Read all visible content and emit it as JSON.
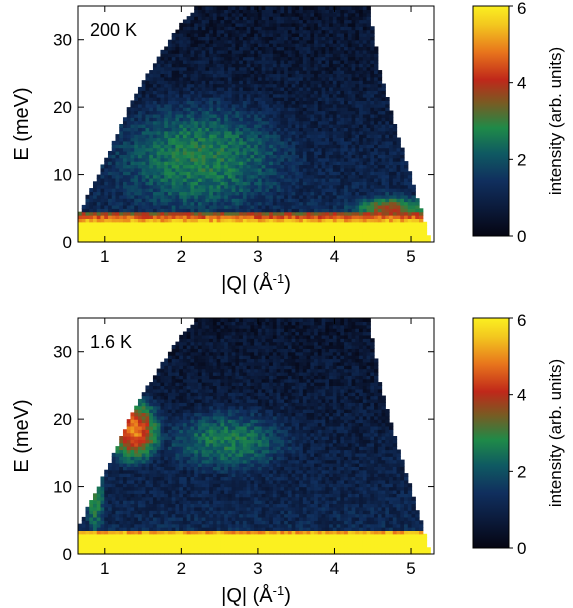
{
  "chart_data": [
    {
      "type": "heatmap",
      "annotation": "200 K",
      "xlabel_main": "|Q| (Å",
      "xlabel_sup": "-1",
      "xlabel_tail": ")",
      "ylabel": "E (meV)",
      "xlim": [
        0.65,
        5.3
      ],
      "ylim": [
        0,
        35
      ],
      "xticks": [
        1,
        2,
        3,
        4,
        5
      ],
      "yticks": [
        0,
        10,
        20,
        30
      ],
      "colorbar": {
        "label": "intensity (arb. units)",
        "range": [
          0,
          6
        ],
        "ticks": [
          0,
          2,
          4,
          6
        ]
      },
      "coverage": {
        "lower_left_edge": [
          [
            0.65,
            4
          ],
          [
            1.0,
            12
          ],
          [
            1.4,
            22
          ],
          [
            1.9,
            31
          ],
          [
            2.2,
            35
          ]
        ],
        "right_edge": [
          [
            4.45,
            35
          ],
          [
            4.6,
            25
          ],
          [
            4.85,
            15
          ],
          [
            5.1,
            6
          ],
          [
            5.25,
            0
          ]
        ]
      },
      "features": [
        {
          "name": "elastic line",
          "E": [
            0,
            3
          ],
          "Q": [
            0.65,
            5.25
          ],
          "intensity": 6
        },
        {
          "name": "quasielastic band",
          "E": [
            3,
            4
          ],
          "Q": [
            0.65,
            5.25
          ],
          "intensity": 4
        },
        {
          "name": "broad diffuse scattering",
          "E": [
            4,
            22
          ],
          "Q": [
            1.0,
            3.5
          ],
          "intensity": 2.2
        },
        {
          "name": "high-Q shoulder",
          "E": [
            3,
            7
          ],
          "Q": [
            4.2,
            5.25
          ],
          "intensity": 3
        }
      ]
    },
    {
      "type": "heatmap",
      "annotation": "1.6 K",
      "xlabel_main": "|Q| (Å",
      "xlabel_sup": "-1",
      "xlabel_tail": ")",
      "ylabel": "E (meV)",
      "xlim": [
        0.65,
        5.3
      ],
      "ylim": [
        0,
        35
      ],
      "xticks": [
        1,
        2,
        3,
        4,
        5
      ],
      "yticks": [
        0,
        10,
        20,
        30
      ],
      "colorbar": {
        "label": "intensity (arb. units)",
        "range": [
          0,
          6
        ],
        "ticks": [
          0,
          2,
          4,
          6
        ]
      },
      "coverage": {
        "lower_left_edge": [
          [
            0.65,
            4
          ],
          [
            1.0,
            12
          ],
          [
            1.4,
            22
          ],
          [
            1.9,
            31
          ],
          [
            2.2,
            35
          ]
        ],
        "right_edge": [
          [
            4.45,
            35
          ],
          [
            4.6,
            25
          ],
          [
            4.85,
            15
          ],
          [
            5.1,
            6
          ],
          [
            5.25,
            0
          ]
        ]
      },
      "features": [
        {
          "name": "elastic line",
          "E": [
            0,
            3
          ],
          "Q": [
            0.65,
            5.25
          ],
          "intensity": 6
        },
        {
          "name": "magnetic excitation",
          "E": [
            14,
            23
          ],
          "Q": [
            1.05,
            1.7
          ],
          "intensity": 4.5
        },
        {
          "name": "dispersive band",
          "E": [
            12,
            22
          ],
          "Q": [
            1.7,
            3.5
          ],
          "intensity": 2.2
        },
        {
          "name": "low-Q streak",
          "E": [
            3,
            15
          ],
          "Q": [
            0.75,
            1.0
          ],
          "intensity": 2.5
        }
      ]
    }
  ]
}
